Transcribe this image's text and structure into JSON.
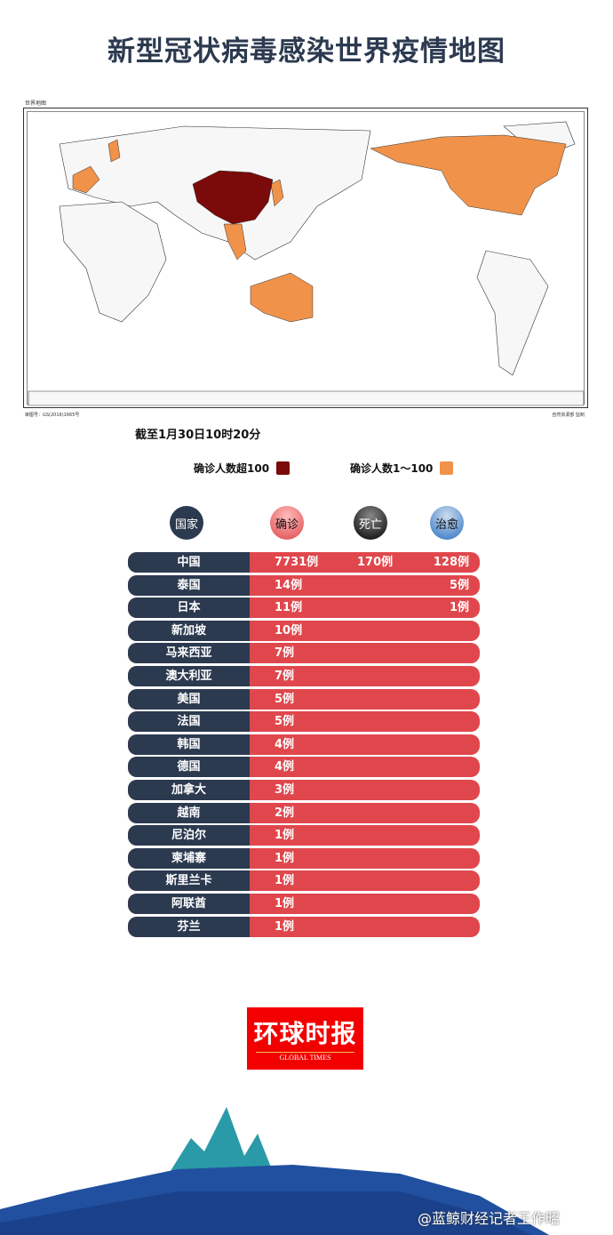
{
  "title": "新型冠状病毒感染世界疫情地图",
  "map": {
    "label": "世界地图",
    "approval": "审图号：GS(2016)1665号",
    "publisher": "自然资源部 监制"
  },
  "as_of": "截至1月30日10时20分",
  "legend": [
    {
      "label": "确诊人数超100",
      "color": "#7b0a0a"
    },
    {
      "label": "确诊人数1～100",
      "color": "#f0924a"
    }
  ],
  "headers": {
    "country": "国家",
    "confirmed": "确诊",
    "deaths": "死亡",
    "recovered": "治愈"
  },
  "rows": [
    {
      "country": "中国",
      "confirmed": "7731例",
      "deaths": "170例",
      "recovered": "128例"
    },
    {
      "country": "泰国",
      "confirmed": "14例",
      "deaths": "",
      "recovered": "5例"
    },
    {
      "country": "日本",
      "confirmed": "11例",
      "deaths": "",
      "recovered": "1例"
    },
    {
      "country": "新加坡",
      "confirmed": "10例",
      "deaths": "",
      "recovered": ""
    },
    {
      "country": "马来西亚",
      "confirmed": "7例",
      "deaths": "",
      "recovered": ""
    },
    {
      "country": "澳大利亚",
      "confirmed": "7例",
      "deaths": "",
      "recovered": ""
    },
    {
      "country": "美国",
      "confirmed": "5例",
      "deaths": "",
      "recovered": ""
    },
    {
      "country": "法国",
      "confirmed": "5例",
      "deaths": "",
      "recovered": ""
    },
    {
      "country": "韩国",
      "confirmed": "4例",
      "deaths": "",
      "recovered": ""
    },
    {
      "country": "德国",
      "confirmed": "4例",
      "deaths": "",
      "recovered": ""
    },
    {
      "country": "加拿大",
      "confirmed": "3例",
      "deaths": "",
      "recovered": ""
    },
    {
      "country": "越南",
      "confirmed": "2例",
      "deaths": "",
      "recovered": ""
    },
    {
      "country": "尼泊尔",
      "confirmed": "1例",
      "deaths": "",
      "recovered": ""
    },
    {
      "country": "柬埔寨",
      "confirmed": "1例",
      "deaths": "",
      "recovered": ""
    },
    {
      "country": "斯里兰卡",
      "confirmed": "1例",
      "deaths": "",
      "recovered": ""
    },
    {
      "country": "阿联酋",
      "confirmed": "1例",
      "deaths": "",
      "recovered": ""
    },
    {
      "country": "芬兰",
      "confirmed": "1例",
      "deaths": "",
      "recovered": ""
    }
  ],
  "logo": {
    "cn": "环球时报",
    "en": "GLOBAL TIMES"
  },
  "watermark": "@蓝鲸财经记者王作昭"
}
